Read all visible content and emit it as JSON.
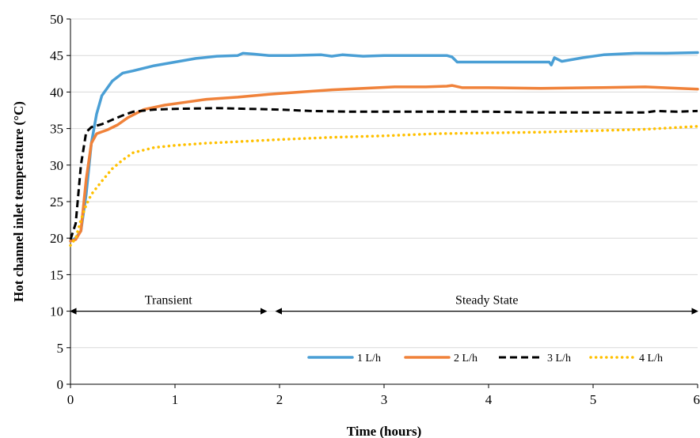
{
  "chart_data": {
    "type": "line",
    "title": "",
    "xlabel": "Time (hours)",
    "ylabel": "Hot channel  inlet temperature (°C)",
    "xlim": [
      0,
      6
    ],
    "ylim": [
      0,
      50
    ],
    "xticks": [
      "0",
      "1",
      "2",
      "3",
      "4",
      "5",
      "6"
    ],
    "yticks": [
      "0",
      "5",
      "10",
      "15",
      "20",
      "25",
      "30",
      "35",
      "40",
      "45",
      "50"
    ],
    "grid": "horizontal",
    "legend_position": "bottom-right",
    "series": [
      {
        "name": "1 L/h",
        "color": "#4A9FD5",
        "style": "solid",
        "points": [
          [
            0,
            19.6
          ],
          [
            0.05,
            20
          ],
          [
            0.1,
            21
          ],
          [
            0.15,
            26
          ],
          [
            0.2,
            33
          ],
          [
            0.25,
            37
          ],
          [
            0.3,
            39.5
          ],
          [
            0.4,
            41.5
          ],
          [
            0.5,
            42.6
          ],
          [
            0.6,
            42.9
          ],
          [
            0.8,
            43.6
          ],
          [
            1.0,
            44.1
          ],
          [
            1.2,
            44.6
          ],
          [
            1.4,
            44.9
          ],
          [
            1.6,
            45
          ],
          [
            1.65,
            45.3
          ],
          [
            1.75,
            45.2
          ],
          [
            1.9,
            45
          ],
          [
            2.1,
            45
          ],
          [
            2.4,
            45.1
          ],
          [
            2.5,
            44.9
          ],
          [
            2.6,
            45.1
          ],
          [
            2.8,
            44.9
          ],
          [
            3.0,
            45
          ],
          [
            3.3,
            45
          ],
          [
            3.6,
            45
          ],
          [
            3.65,
            44.8
          ],
          [
            3.7,
            44.1
          ],
          [
            4.0,
            44.1
          ],
          [
            4.3,
            44.1
          ],
          [
            4.58,
            44.1
          ],
          [
            4.6,
            43.7
          ],
          [
            4.63,
            44.7
          ],
          [
            4.7,
            44.2
          ],
          [
            4.9,
            44.7
          ],
          [
            5.1,
            45.1
          ],
          [
            5.4,
            45.3
          ],
          [
            5.7,
            45.3
          ],
          [
            6.0,
            45.4
          ]
        ]
      },
      {
        "name": "2 L/h",
        "color": "#F0823A",
        "style": "solid",
        "points": [
          [
            0,
            19.6
          ],
          [
            0.05,
            19.8
          ],
          [
            0.1,
            21
          ],
          [
            0.15,
            28
          ],
          [
            0.2,
            33
          ],
          [
            0.25,
            34.3
          ],
          [
            0.35,
            34.8
          ],
          [
            0.45,
            35.5
          ],
          [
            0.55,
            36.5
          ],
          [
            0.7,
            37.6
          ],
          [
            0.9,
            38.2
          ],
          [
            1.1,
            38.6
          ],
          [
            1.3,
            39
          ],
          [
            1.6,
            39.3
          ],
          [
            1.9,
            39.7
          ],
          [
            2.2,
            40
          ],
          [
            2.5,
            40.3
          ],
          [
            2.8,
            40.5
          ],
          [
            3.1,
            40.7
          ],
          [
            3.4,
            40.7
          ],
          [
            3.6,
            40.8
          ],
          [
            3.65,
            40.9
          ],
          [
            3.75,
            40.6
          ],
          [
            4.0,
            40.6
          ],
          [
            4.5,
            40.5
          ],
          [
            5.0,
            40.6
          ],
          [
            5.5,
            40.7
          ],
          [
            6.0,
            40.4
          ]
        ]
      },
      {
        "name": "3 L/h",
        "color": "#000000",
        "style": "dashed",
        "points": [
          [
            0,
            19.8
          ],
          [
            0.05,
            22
          ],
          [
            0.1,
            30
          ],
          [
            0.15,
            34.5
          ],
          [
            0.2,
            35.2
          ],
          [
            0.3,
            35.6
          ],
          [
            0.4,
            36.2
          ],
          [
            0.5,
            36.8
          ],
          [
            0.6,
            37.3
          ],
          [
            0.8,
            37.6
          ],
          [
            1.0,
            37.7
          ],
          [
            1.4,
            37.8
          ],
          [
            1.7,
            37.7
          ],
          [
            2.0,
            37.6
          ],
          [
            2.3,
            37.4
          ],
          [
            2.7,
            37.3
          ],
          [
            3.0,
            37.3
          ],
          [
            3.5,
            37.3
          ],
          [
            4.0,
            37.3
          ],
          [
            4.5,
            37.2
          ],
          [
            5.0,
            37.2
          ],
          [
            5.5,
            37.2
          ],
          [
            5.6,
            37.4
          ],
          [
            5.8,
            37.3
          ],
          [
            6.0,
            37.4
          ]
        ]
      },
      {
        "name": "4 L/h",
        "color": "#FFC000",
        "style": "dotted",
        "points": [
          [
            0,
            19
          ],
          [
            0.05,
            20
          ],
          [
            0.1,
            22.5
          ],
          [
            0.15,
            24.5
          ],
          [
            0.2,
            26
          ],
          [
            0.3,
            27.8
          ],
          [
            0.4,
            29.5
          ],
          [
            0.5,
            30.7
          ],
          [
            0.6,
            31.7
          ],
          [
            0.8,
            32.4
          ],
          [
            1.0,
            32.7
          ],
          [
            1.3,
            33
          ],
          [
            1.6,
            33.2
          ],
          [
            2.0,
            33.5
          ],
          [
            2.5,
            33.8
          ],
          [
            3.0,
            34
          ],
          [
            3.5,
            34.3
          ],
          [
            4.0,
            34.4
          ],
          [
            4.5,
            34.5
          ],
          [
            5.0,
            34.7
          ],
          [
            5.5,
            34.9
          ],
          [
            6.0,
            35.3
          ]
        ]
      }
    ],
    "annotations": [
      {
        "text": "Transient",
        "x_range": [
          0,
          1.92
        ],
        "y": 10
      },
      {
        "text": "Steady State",
        "x_range": [
          1.92,
          6
        ],
        "y": 10
      }
    ]
  }
}
